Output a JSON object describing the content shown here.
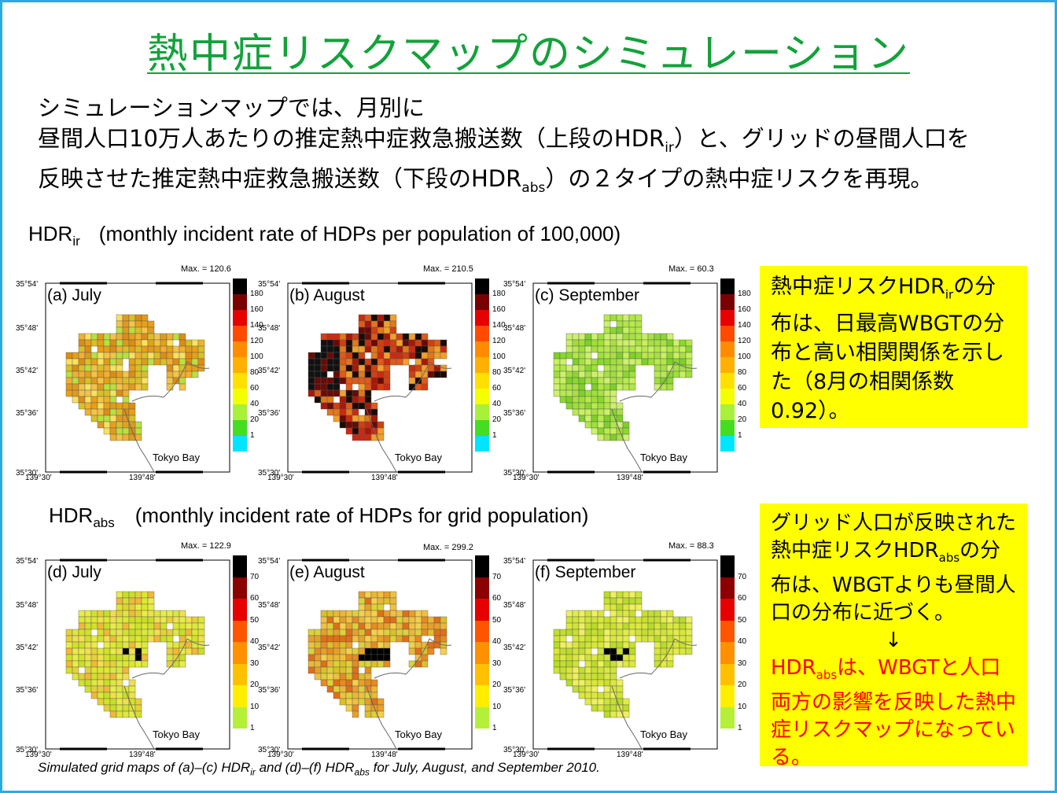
{
  "title": "熱中症リスクマップのシミュレーション",
  "intro": {
    "line1": "シミュレーションマップでは、月別に",
    "line2_pre": "昼間人口10万人あたりの推定熱中症救急搬送数（上段のHDR",
    "line2_sub": "ir",
    "line2_post": "）と、グリッドの昼間人口を",
    "line3_pre": "反映させた推定熱中症救急搬送数（下段のHDR",
    "line3_sub": "abs",
    "line3_post": "）の２タイプの熱中症リスクを再現。"
  },
  "sections": {
    "ir": {
      "label_main": "HDR",
      "label_sub": "ir",
      "label_desc": "(monthly incident rate of HDPs per population of 100,000)"
    },
    "abs": {
      "label_main": "HDR",
      "label_sub": "abs",
      "label_desc": "(monthly incident rate of HDPs for grid population)"
    }
  },
  "map_common": {
    "bay_label": "Tokyo Bay",
    "lat_labels": [
      "35°54'",
      "35°48'",
      "35°42'",
      "35°36'",
      "35°30'"
    ],
    "lon_labels": [
      "139°30'",
      "139°48'"
    ]
  },
  "colorbars": {
    "ir": {
      "ticks": [
        "180",
        "160",
        "140",
        "120",
        "100",
        "80",
        "60",
        "40",
        "20",
        "1"
      ],
      "colors": [
        "#000000",
        "#7a0000",
        "#e60000",
        "#ff4a00",
        "#ff8c00",
        "#ffb000",
        "#ffe000",
        "#f4ff00",
        "#a8f03a",
        "#44dd22",
        "#00e5ff"
      ]
    },
    "abs": {
      "ticks": [
        "70",
        "60",
        "50",
        "40",
        "30",
        "20",
        "10",
        "1"
      ],
      "colors": [
        "#000000",
        "#8b0000",
        "#e60000",
        "#ff5500",
        "#ff9000",
        "#ffc000",
        "#ffee00",
        "#b4f03a"
      ]
    }
  },
  "panels": [
    {
      "id": "a",
      "label": "(a)  July",
      "max_label": "Max. = 120.6",
      "bar": "ir",
      "palette": [
        "#e8a018",
        "#f0b030",
        "#e09a20",
        "#d9c028",
        "#f2c448",
        "#dd8d16",
        "#b8e040",
        "#f8e060"
      ]
    },
    {
      "id": "b",
      "label": "(b)  August",
      "max_label": "Max. = 210.5",
      "bar": "ir",
      "palette": [
        "#cc2a10",
        "#e05a18",
        "#a81808",
        "#e0781c",
        "#1a0a04",
        "#f0a02a",
        "#d04010",
        "#6a0a04"
      ]
    },
    {
      "id": "c",
      "label": "(c)  September",
      "max_label": "Max. = 60.3",
      "bar": "ir",
      "palette": [
        "#9ee03a",
        "#b8ea50",
        "#8ad830",
        "#c8f060",
        "#a8e046",
        "#7ed02a",
        "#b0e844",
        "#cef070"
      ]
    },
    {
      "id": "d",
      "label": "(d)  July",
      "max_label": "Max. = 122.9",
      "bar": "abs",
      "palette": [
        "#dde830",
        "#e8ec48",
        "#d2e22a",
        "#f0e050",
        "#e6d03a",
        "#f2b838",
        "#dce840",
        "#c8df28"
      ]
    },
    {
      "id": "e",
      "label": "(e)  August",
      "max_label": "Max. = 299.2",
      "bar": "abs",
      "palette": [
        "#eab838",
        "#f0c040",
        "#e8a02a",
        "#dcd238",
        "#e88a22",
        "#f4d04c",
        "#dcc028",
        "#e07018"
      ]
    },
    {
      "id": "f",
      "label": "(f)  September",
      "max_label": "Max. = 88.3",
      "bar": "abs",
      "palette": [
        "#d8e838",
        "#c8e02e",
        "#e2ec48",
        "#b8dc28",
        "#eef060",
        "#cfe43a",
        "#dce840",
        "#c2de30"
      ]
    }
  ],
  "note1": {
    "pre": "熱中症リスクHDR",
    "sub": "ir",
    "post": "の分布は、日最高WBGTの分布と高い相関関係を示した（8月の相関係数0.92）。"
  },
  "note2": {
    "black": "グリッド人口が反映された熱中症リスクHDR",
    "black_sub": "abs",
    "black_post": "の分布は、WBGTよりも昼間人口の分布に近づく。",
    "arrow": "↓",
    "red_pre": "HDR",
    "red_sub": "abs",
    "red_post": "は、WBGTと人口両方の影響を反映した熱中症リスクマップになっている。"
  },
  "caption": {
    "t1": "Simulated grid maps of (a)–(c)  HDR",
    "s1": "ir",
    "t2": " and (d)–(f)  HDR",
    "s2": "abs",
    "t3": " for July, August, and September 2010."
  }
}
